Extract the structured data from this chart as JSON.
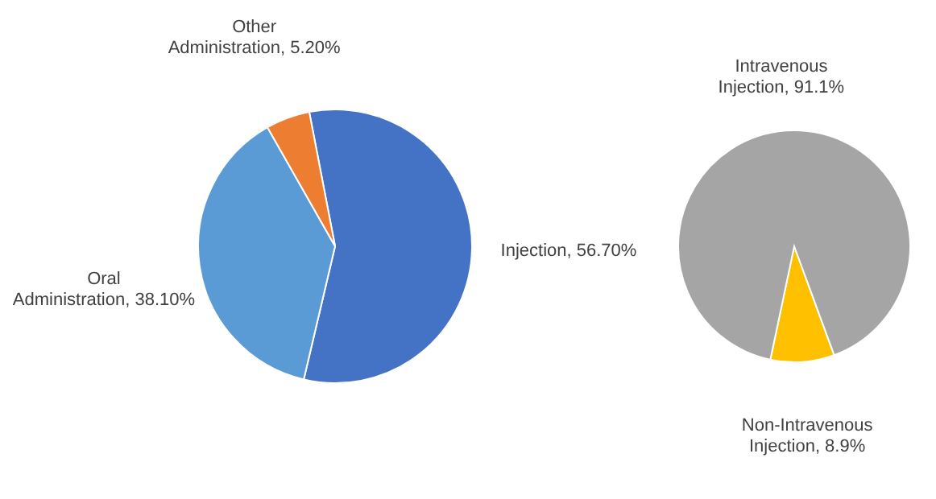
{
  "chart_data": [
    {
      "type": "pie",
      "categories": [
        "Injection",
        "Oral Administration",
        "Other Administration"
      ],
      "values": [
        56.7,
        38.1,
        5.2
      ],
      "colors": [
        "#4472c4",
        "#5b9bd5",
        "#ed7d31"
      ],
      "value_labels": [
        "56.70%",
        "38.10%",
        "5.20%"
      ]
    },
    {
      "type": "pie",
      "categories": [
        "Non-Intravenous Injection",
        "Intravenous Injection"
      ],
      "values": [
        8.9,
        91.1
      ],
      "colors": [
        "#ffc000",
        "#a5a5a5"
      ],
      "value_labels": [
        "8.9%",
        "91.1%"
      ]
    }
  ]
}
